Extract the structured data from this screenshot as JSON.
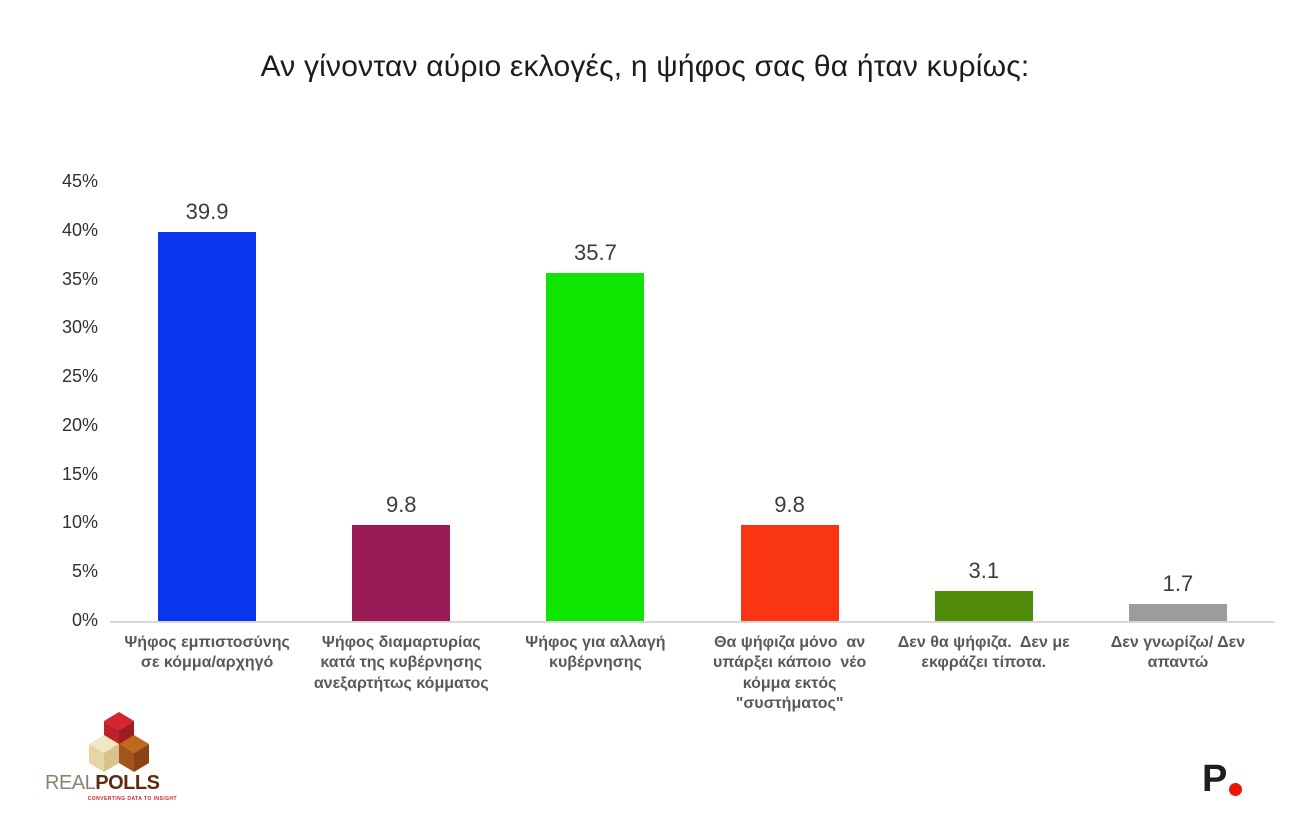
{
  "title": "Αν γίνονταν αύριο εκλογές, η ψήφος σας θα ήταν κυρίως:",
  "chart_data": {
    "type": "bar",
    "title": "Αν γίνονταν αύριο εκλογές, η ψήφος σας θα ήταν κυρίως:",
    "categories": [
      "Ψήφος εμπιστοσύνης σε κόμμα/αρχηγό",
      "Ψήφος διαμαρτυρίας κατά της κυβέρνησης ανεξαρτήτως κόμματος",
      "Ψήφος για αλλαγή κυβέρνησης",
      "Θα ψήφιζα μόνο  αν υπάρξει κάποιο  νέο κόμμα εκτός \"συστήματος\"",
      "Δεν θα ψήφιζα.  Δεν με εκφράζει τίποτα.",
      "Δεν γνωρίζω/ Δεν απαντώ"
    ],
    "values": [
      39.9,
      9.8,
      35.7,
      9.8,
      3.1,
      1.7
    ],
    "value_labels": [
      "39.9",
      "9.8",
      "35.7",
      "9.8",
      "3.1",
      "1.7"
    ],
    "bar_colors": [
      "#0b35ee",
      "#9a1a55",
      "#0ee500",
      "#f93611",
      "#4f8c0a",
      "#9c9c9c"
    ],
    "xlabel": "",
    "ylabel": "",
    "ylim": [
      0,
      45
    ],
    "yticks": [
      0,
      5,
      10,
      15,
      20,
      25,
      30,
      35,
      40,
      45
    ],
    "ytick_labels": [
      "0%",
      "5%",
      "10%",
      "15%",
      "20%",
      "25%",
      "30%",
      "35%",
      "40%",
      "45%"
    ],
    "grid": false,
    "legend": false,
    "axis_line_color": "#d8d8d8",
    "value_label_color": "#3c3c3c"
  },
  "branding": {
    "realpolls": {
      "name_part1": "REAL",
      "name_part2": "POLLS",
      "tagline": "CONVERTING DATA TO INSIGHT",
      "colors": {
        "real_text": "#8c8272",
        "polls_text": "#5b2d0e",
        "tagline": "#c9252c",
        "cube_red_top": "#d7242e",
        "cube_red_left": "#c0202a",
        "cube_red_right": "#9e1d24",
        "cube_tan_top": "#f2e7c4",
        "cube_tan_left": "#e6d4a4",
        "cube_tan_right": "#d9c28c",
        "cube_brown_top": "#bd6a1e",
        "cube_brown_left": "#a3541a",
        "cube_brown_right": "#8a4414"
      }
    },
    "p_logo": {
      "letter": "P",
      "letter_color": "#1f1f1f",
      "dot_color": "#ec1607"
    }
  }
}
